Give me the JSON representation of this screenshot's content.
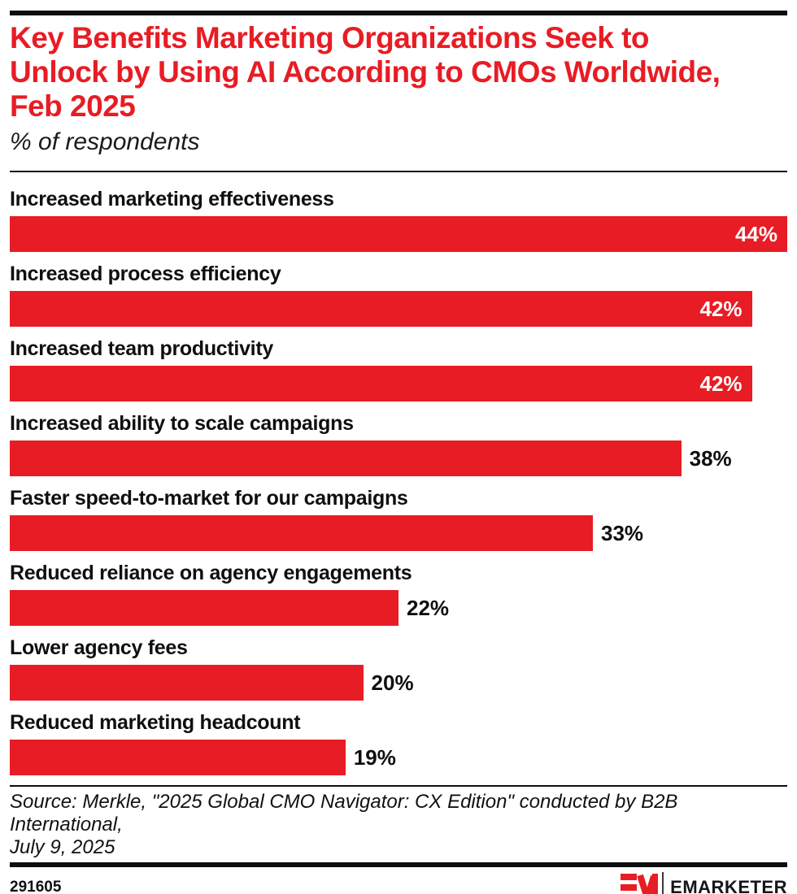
{
  "header": {
    "title": "Key Benefits Marketing Organizations Seek to Unlock by Using AI According to CMOs Worldwide, Feb 2025",
    "title_lines": [
      "Key Benefits Marketing Organizations Seek to",
      "Unlock by Using AI According to CMOs Worldwide,",
      "Feb 2025"
    ],
    "subtitle": "% of respondents"
  },
  "chart_data": {
    "type": "bar",
    "orientation": "horizontal",
    "title": "Key Benefits Marketing Organizations Seek to Unlock by Using AI According to CMOs Worldwide, Feb 2025",
    "subtitle": "% of respondents",
    "categories": [
      "Increased marketing effectiveness",
      "Increased process efficiency",
      "Increased team productivity",
      "Increased ability to scale campaigns",
      "Faster speed-to-market for our campaigns",
      "Reduced reliance on agency engagements",
      "Lower agency fees",
      "Reduced marketing headcount"
    ],
    "values": [
      44,
      42,
      42,
      38,
      33,
      22,
      20,
      19
    ],
    "value_labels": [
      "44%",
      "42%",
      "42%",
      "38%",
      "33%",
      "22%",
      "20%",
      "19%"
    ],
    "value_suffix": "%",
    "xlim": [
      0,
      44
    ],
    "grid": false,
    "legend": false,
    "bar_color": "#e81c24"
  },
  "footer": {
    "source_lines": [
      "Source: Merkle, \"2025 Global CMO Navigator: CX Edition\" conducted by B2B International,",
      "July 9, 2025"
    ],
    "chart_id": "291605",
    "brand_name": "EMARKETER"
  },
  "colors": {
    "accent_red": "#e81c24",
    "ink": "#0f0f0f"
  }
}
